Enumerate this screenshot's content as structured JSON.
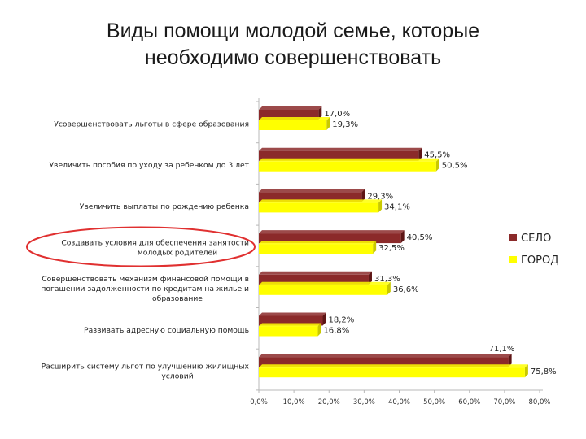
{
  "title": {
    "line1": "Виды помощи молодой семье, которые",
    "line2": "необходимо совершенствовать"
  },
  "colors": {
    "selo": "#8b2a2a",
    "gorod": "#ffff00",
    "highlight": "#e03030"
  },
  "chart_data": {
    "type": "bar",
    "orientation": "horizontal",
    "title": "",
    "xlabel": "",
    "ylabel": "",
    "xlim": [
      0,
      80
    ],
    "x_ticks": [
      "0,0%",
      "10,0%",
      "20,0%",
      "30,0%",
      "40,0%",
      "50,0%",
      "60,0%",
      "70,0%",
      "80,0%"
    ],
    "grid": false,
    "legend_position": "right",
    "categories": [
      [
        "Усовершенствовать льготы в сфере образования"
      ],
      [
        "Увеличить пособия по уходу за ребенком до 3 лет"
      ],
      [
        "Увеличить выплаты по рождению ребенка"
      ],
      [
        "Создавать условия для обеспечения занятости",
        "молодых родителей"
      ],
      [
        "Совершенствовать механизм финансовой помощи в",
        "погашении задолженности по кредитам на жилье и",
        "образование"
      ],
      [
        "Развивать адресную социальную помощь"
      ],
      [
        "Расширить систему льгот по улучшению жилищных",
        "условий"
      ]
    ],
    "highlighted_category": 3,
    "series": [
      {
        "name": "СЕЛО",
        "values": [
          17.0,
          45.5,
          29.3,
          40.5,
          31.3,
          18.2,
          71.1
        ],
        "labels": [
          "17,0%",
          "45,5%",
          "29,3%",
          "40,5%",
          "31,3%",
          "18,2%",
          "71,1%"
        ]
      },
      {
        "name": "ГОРОД",
        "values": [
          19.3,
          50.5,
          34.1,
          32.5,
          36.6,
          16.8,
          75.8
        ],
        "labels": [
          "19,3%",
          "50,5%",
          "34,1%",
          "32,5%",
          "36,6%",
          "16,8%",
          "75,8%"
        ]
      }
    ]
  }
}
